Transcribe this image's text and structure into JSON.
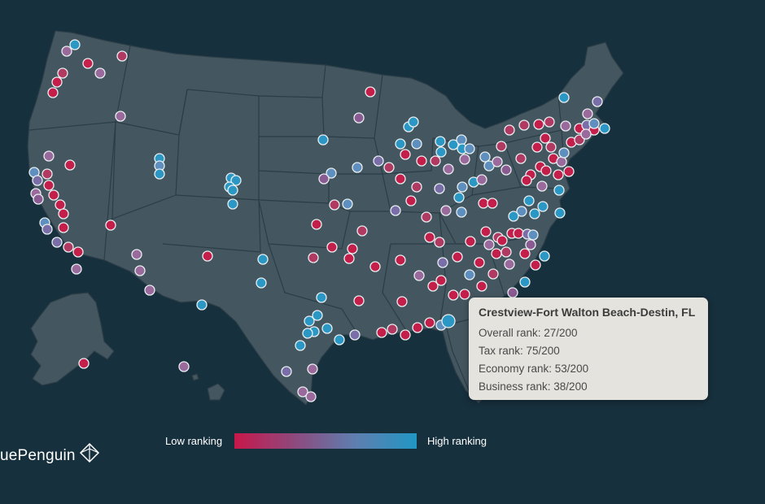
{
  "tooltip": {
    "title": "Crestview-Fort Walton Beach-Destin, FL",
    "overall": "Overall rank: 27/200",
    "tax": "Tax rank: 75/200",
    "economy": "Economy rank: 53/200",
    "business": "Business rank: 38/200"
  },
  "legend": {
    "low_label": "Low ranking",
    "high_label": "High ranking",
    "colors": [
      "#c8184a",
      "#8d4a7e",
      "#5e7fb0",
      "#2196c4"
    ]
  },
  "brand": {
    "name": "uePenguin",
    "icon": "penguin-logo-icon"
  },
  "colors": {
    "background": "#17303d",
    "land": "#44565f",
    "border": "#2b3d46"
  }
}
